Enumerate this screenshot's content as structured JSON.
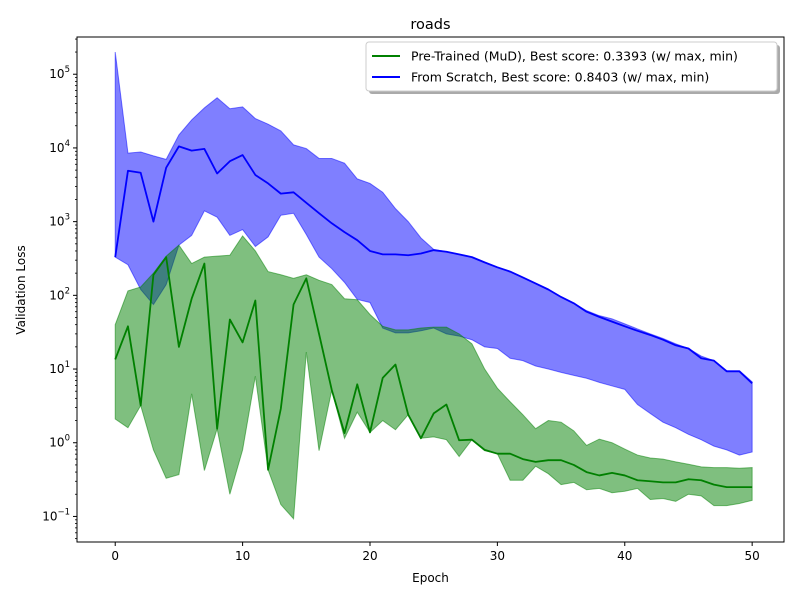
{
  "chart_data": {
    "type": "area",
    "title": "roads",
    "xlabel": "Epoch",
    "ylabel": "Validation Loss",
    "xlim": [
      -3,
      52.5
    ],
    "ylim": [
      0.045,
      320000
    ],
    "yscale": "log",
    "grid": false,
    "legend_position": "top-right",
    "x_ticks": [
      {
        "value": 0,
        "label": "0"
      },
      {
        "value": 10,
        "label": "10"
      },
      {
        "value": 20,
        "label": "20"
      },
      {
        "value": 30,
        "label": "30"
      },
      {
        "value": 40,
        "label": "40"
      },
      {
        "value": 50,
        "label": "50"
      }
    ],
    "y_ticks": [
      {
        "value": 0.1,
        "base": "10",
        "exp": "−1"
      },
      {
        "value": 1,
        "base": "10",
        "exp": "0"
      },
      {
        "value": 10,
        "base": "10",
        "exp": "1"
      },
      {
        "value": 100,
        "base": "10",
        "exp": "2"
      },
      {
        "value": 1000,
        "base": "10",
        "exp": "3"
      },
      {
        "value": 10000,
        "base": "10",
        "exp": "4"
      },
      {
        "value": 100000,
        "base": "10",
        "exp": "5"
      }
    ],
    "series": [
      {
        "name": "From Scratch, Best score: 0.8403 (w/ max, min)",
        "color": "#0000ff",
        "fill_color": "#0000ff",
        "fill_opacity": 0.5,
        "x": [
          0,
          1,
          2,
          3,
          4,
          5,
          6,
          7,
          8,
          9,
          10,
          11,
          12,
          13,
          14,
          15,
          16,
          17,
          18,
          19,
          20,
          21,
          22,
          23,
          24,
          25,
          26,
          27,
          28,
          29,
          30,
          31,
          32,
          33,
          34,
          35,
          36,
          37,
          38,
          39,
          40,
          41,
          42,
          43,
          44,
          45,
          46,
          47,
          48,
          49,
          50
        ],
        "values": [
          330,
          4900,
          4600,
          1000,
          5400,
          10500,
          9200,
          9700,
          4500,
          6600,
          8000,
          4300,
          3300,
          2400,
          2500,
          1800,
          1300,
          950,
          720,
          560,
          400,
          360,
          360,
          350,
          370,
          410,
          390,
          360,
          330,
          280,
          240,
          210,
          175,
          145,
          120,
          95,
          78,
          60,
          51,
          44,
          38,
          33,
          29,
          25,
          21,
          19,
          14,
          13,
          9.3,
          9.3,
          6.4
        ],
        "max": [
          200000,
          8500,
          8800,
          7800,
          7000,
          15000,
          24000,
          35000,
          48000,
          34000,
          36000,
          25000,
          21000,
          17000,
          11000,
          9800,
          7200,
          7200,
          6200,
          3800,
          3300,
          2500,
          1500,
          1000,
          600,
          420,
          390,
          360,
          330,
          280,
          240,
          210,
          175,
          145,
          120,
          95,
          78,
          62,
          53,
          48,
          41,
          35,
          30,
          26,
          22,
          19,
          15,
          13,
          9.5,
          9.5,
          6.7
        ],
        "min": [
          330,
          260,
          120,
          75,
          140,
          480,
          650,
          1400,
          1150,
          650,
          780,
          460,
          620,
          1220,
          1300,
          670,
          330,
          230,
          150,
          88,
          80,
          36,
          31,
          31,
          33,
          36,
          30,
          28,
          25,
          20,
          19,
          14,
          13,
          11,
          10,
          9.0,
          8.2,
          7.5,
          6.6,
          5.9,
          5.3,
          3.3,
          2.5,
          1.9,
          1.6,
          1.3,
          1.1,
          0.9,
          0.8,
          0.68,
          0.75
        ]
      },
      {
        "name": "Pre-Trained (MuD), Best score: 0.3393 (w/ max, min)",
        "color": "#008000",
        "fill_color": "#008000",
        "fill_opacity": 0.5,
        "x": [
          0,
          1,
          2,
          3,
          4,
          5,
          6,
          7,
          8,
          9,
          10,
          11,
          12,
          13,
          14,
          15,
          16,
          17,
          18,
          19,
          20,
          21,
          22,
          23,
          24,
          25,
          26,
          27,
          28,
          29,
          30,
          31,
          32,
          33,
          34,
          35,
          36,
          37,
          38,
          39,
          40,
          41,
          42,
          43,
          44,
          45,
          46,
          47,
          48,
          49,
          50
        ],
        "values": [
          13.5,
          38,
          3.2,
          190,
          330,
          20,
          90,
          270,
          1.55,
          47,
          23,
          85,
          0.43,
          2.9,
          75,
          170,
          30,
          5.2,
          1.35,
          6.2,
          1.38,
          7.6,
          11.5,
          2.4,
          1.15,
          2.5,
          3.3,
          1.08,
          1.1,
          0.8,
          0.71,
          0.71,
          0.6,
          0.55,
          0.58,
          0.58,
          0.5,
          0.4,
          0.36,
          0.39,
          0.36,
          0.31,
          0.3,
          0.29,
          0.29,
          0.32,
          0.31,
          0.27,
          0.25,
          0.25,
          0.25
        ],
        "max": [
          40,
          115,
          130,
          200,
          340,
          480,
          270,
          330,
          340,
          350,
          640,
          400,
          210,
          190,
          170,
          190,
          160,
          140,
          90,
          87,
          55,
          38,
          34,
          34,
          36,
          37,
          37,
          30,
          22,
          10,
          5.5,
          3.6,
          2.4,
          1.55,
          2.0,
          1.9,
          1.45,
          0.92,
          1.12,
          1.0,
          0.82,
          0.68,
          0.62,
          0.6,
          0.55,
          0.51,
          0.47,
          0.46,
          0.46,
          0.45,
          0.46
        ],
        "min": [
          2.1,
          1.6,
          3.2,
          0.8,
          0.33,
          0.37,
          4.6,
          0.42,
          1.55,
          0.2,
          0.8,
          8.0,
          0.43,
          0.145,
          0.093,
          17,
          0.78,
          5.2,
          1.15,
          2.6,
          1.38,
          2.0,
          1.5,
          2.4,
          1.15,
          1.2,
          1.1,
          0.65,
          1.1,
          0.78,
          0.71,
          0.31,
          0.31,
          0.48,
          0.38,
          0.27,
          0.29,
          0.23,
          0.24,
          0.21,
          0.22,
          0.24,
          0.17,
          0.175,
          0.16,
          0.2,
          0.19,
          0.14,
          0.14,
          0.15,
          0.165
        ]
      }
    ],
    "legend": [
      {
        "label": "Pre-Trained (MuD), Best score: 0.3393 (w/ max, min)",
        "color": "#008000"
      },
      {
        "label": "From Scratch, Best score: 0.8403 (w/ max, min)",
        "color": "#0000ff"
      }
    ]
  }
}
